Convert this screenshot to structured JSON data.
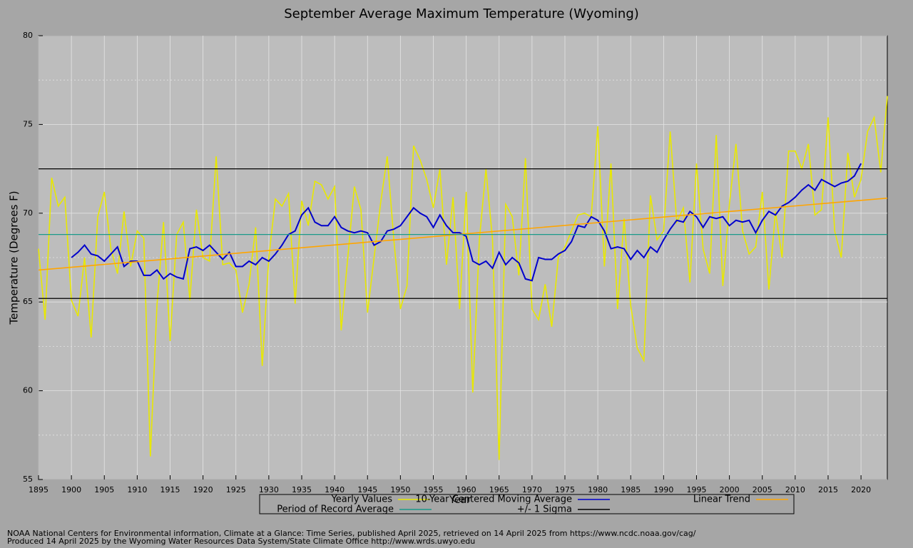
{
  "chart_data": {
    "type": "line",
    "title": "September Average Maximum Temperature (Wyoming)",
    "xlabel": "Year",
    "ylabel": "Temperature (Degrees F)",
    "xlim": [
      1895,
      2024
    ],
    "ylim": [
      55,
      80
    ],
    "xticks": [
      1895,
      1900,
      1905,
      1910,
      1915,
      1920,
      1925,
      1930,
      1935,
      1940,
      1945,
      1950,
      1955,
      1960,
      1965,
      1970,
      1975,
      1980,
      1985,
      1990,
      1995,
      2000,
      2005,
      2010,
      2015,
      2020
    ],
    "yticks": [
      55,
      60,
      65,
      70,
      75,
      80
    ],
    "yminorticks": [
      57.5,
      62.5,
      67.5,
      72.5,
      77.5
    ],
    "grid": true,
    "x": [
      1895,
      1896,
      1897,
      1898,
      1899,
      1900,
      1901,
      1902,
      1903,
      1904,
      1905,
      1906,
      1907,
      1908,
      1909,
      1910,
      1911,
      1912,
      1913,
      1914,
      1915,
      1916,
      1917,
      1918,
      1919,
      1920,
      1921,
      1922,
      1923,
      1924,
      1925,
      1926,
      1927,
      1928,
      1929,
      1930,
      1931,
      1932,
      1933,
      1934,
      1935,
      1936,
      1937,
      1938,
      1939,
      1940,
      1941,
      1942,
      1943,
      1944,
      1945,
      1946,
      1947,
      1948,
      1949,
      1950,
      1951,
      1952,
      1953,
      1954,
      1955,
      1956,
      1957,
      1958,
      1959,
      1960,
      1961,
      1962,
      1963,
      1964,
      1965,
      1966,
      1967,
      1968,
      1969,
      1970,
      1971,
      1972,
      1973,
      1974,
      1975,
      1976,
      1977,
      1978,
      1979,
      1980,
      1981,
      1982,
      1983,
      1984,
      1985,
      1986,
      1987,
      1988,
      1989,
      1990,
      1991,
      1992,
      1993,
      1994,
      1995,
      1996,
      1997,
      1998,
      1999,
      2000,
      2001,
      2002,
      2003,
      2004,
      2005,
      2006,
      2007,
      2008,
      2009,
      2010,
      2011,
      2012,
      2013,
      2014,
      2015,
      2016,
      2017,
      2018,
      2019,
      2020,
      2021,
      2022,
      2023,
      2024
    ],
    "series": [
      {
        "name": "Yearly Values",
        "color": "#e8e800",
        "values": [
          68.0,
          64.0,
          72.0,
          70.4,
          70.9,
          65.1,
          64.2,
          67.5,
          63.0,
          69.8,
          71.2,
          68.0,
          66.6,
          70.1,
          67.0,
          69.0,
          68.6,
          56.3,
          64.8,
          69.5,
          62.8,
          68.8,
          69.5,
          65.1,
          70.2,
          67.5,
          67.3,
          73.2,
          67.1,
          67.2,
          66.8,
          64.4,
          66.0,
          69.2,
          61.4,
          67.5,
          70.8,
          70.4,
          71.1,
          64.9,
          70.7,
          69.3,
          71.8,
          71.6,
          70.8,
          71.5,
          63.4,
          67.5,
          71.5,
          70.2,
          64.4,
          67.5,
          70.6,
          73.2,
          68.5,
          64.6,
          65.9,
          73.8,
          73.0,
          71.9,
          70.3,
          72.5,
          67.1,
          70.9,
          64.6,
          71.2,
          59.9,
          68.5,
          72.5,
          68.5,
          56.1,
          70.5,
          69.8,
          66.5,
          73.1,
          64.6,
          64.0,
          66.0,
          63.6,
          67.5,
          68.1,
          69.0,
          69.9,
          70.0,
          69.8,
          74.9,
          67.0,
          72.8,
          64.6,
          69.7,
          64.8,
          62.4,
          61.7,
          71.0,
          68.5,
          69.0,
          74.6,
          69.5,
          70.3,
          66.1,
          72.8,
          68.0,
          66.6,
          74.4,
          65.9,
          70.5,
          73.9,
          69.0,
          67.7,
          68.1,
          71.2,
          65.7,
          70.1,
          67.5,
          73.5,
          73.5,
          72.5,
          73.9,
          69.9,
          70.2,
          75.4,
          69.0,
          67.5,
          73.4,
          70.9,
          71.9,
          74.6,
          75.4,
          72.3,
          76.6
        ]
      },
      {
        "name": "10-Year Centered Moving Average",
        "color": "#0000cc",
        "values": [
          null,
          null,
          null,
          null,
          null,
          67.5,
          67.8,
          68.2,
          67.7,
          67.6,
          67.3,
          67.7,
          68.1,
          67.0,
          67.3,
          67.3,
          66.5,
          66.5,
          66.8,
          66.3,
          66.6,
          66.4,
          66.3,
          68.0,
          68.1,
          67.9,
          68.2,
          67.8,
          67.4,
          67.8,
          67.0,
          67.0,
          67.3,
          67.1,
          67.5,
          67.3,
          67.7,
          68.2,
          68.8,
          69.0,
          69.9,
          70.3,
          69.5,
          69.3,
          69.3,
          69.8,
          69.2,
          69.0,
          68.9,
          69.0,
          68.9,
          68.2,
          68.4,
          69.0,
          69.1,
          69.3,
          69.8,
          70.3,
          70.0,
          69.8,
          69.2,
          69.9,
          69.3,
          68.9,
          68.9,
          68.7,
          67.3,
          67.1,
          67.3,
          66.9,
          67.8,
          67.1,
          67.5,
          67.2,
          66.3,
          66.2,
          67.5,
          67.4,
          67.4,
          67.7,
          67.9,
          68.4,
          69.3,
          69.2,
          69.8,
          69.6,
          69.0,
          68.0,
          68.1,
          68.0,
          67.4,
          67.9,
          67.5,
          68.1,
          67.8,
          68.5,
          69.1,
          69.6,
          69.5,
          70.1,
          69.8,
          69.2,
          69.8,
          69.7,
          69.8,
          69.3,
          69.6,
          69.5,
          69.6,
          68.9,
          69.6,
          70.1,
          69.9,
          70.4,
          70.6,
          70.9,
          71.3,
          71.6,
          71.3,
          71.9,
          71.7,
          71.5,
          71.7,
          71.8,
          72.1,
          72.8,
          null,
          null,
          null,
          null
        ]
      },
      {
        "name": "Linear Trend",
        "color": "#ffa500",
        "x": [
          1895,
          2024
        ],
        "values": [
          66.8,
          70.85
        ]
      },
      {
        "name": "Period of Record Average",
        "color": "#1a9a8a",
        "hlines": [
          68.8
        ]
      },
      {
        "name": "+/- 1 Sigma",
        "color": "#000000",
        "hlines": [
          72.5,
          65.2
        ]
      }
    ],
    "notes": [
      "NOAA National Centers for Environmental information, Climate at a Glance: Time Series, published April 2025, retrieved on 14 April 2025 from https://www.ncdc.noaa.gov/cag/",
      "Produced 14 April 2025 by the Wyoming Water Resources Data System/State Climate Office http://www.wrds.uwyo.edu"
    ]
  }
}
